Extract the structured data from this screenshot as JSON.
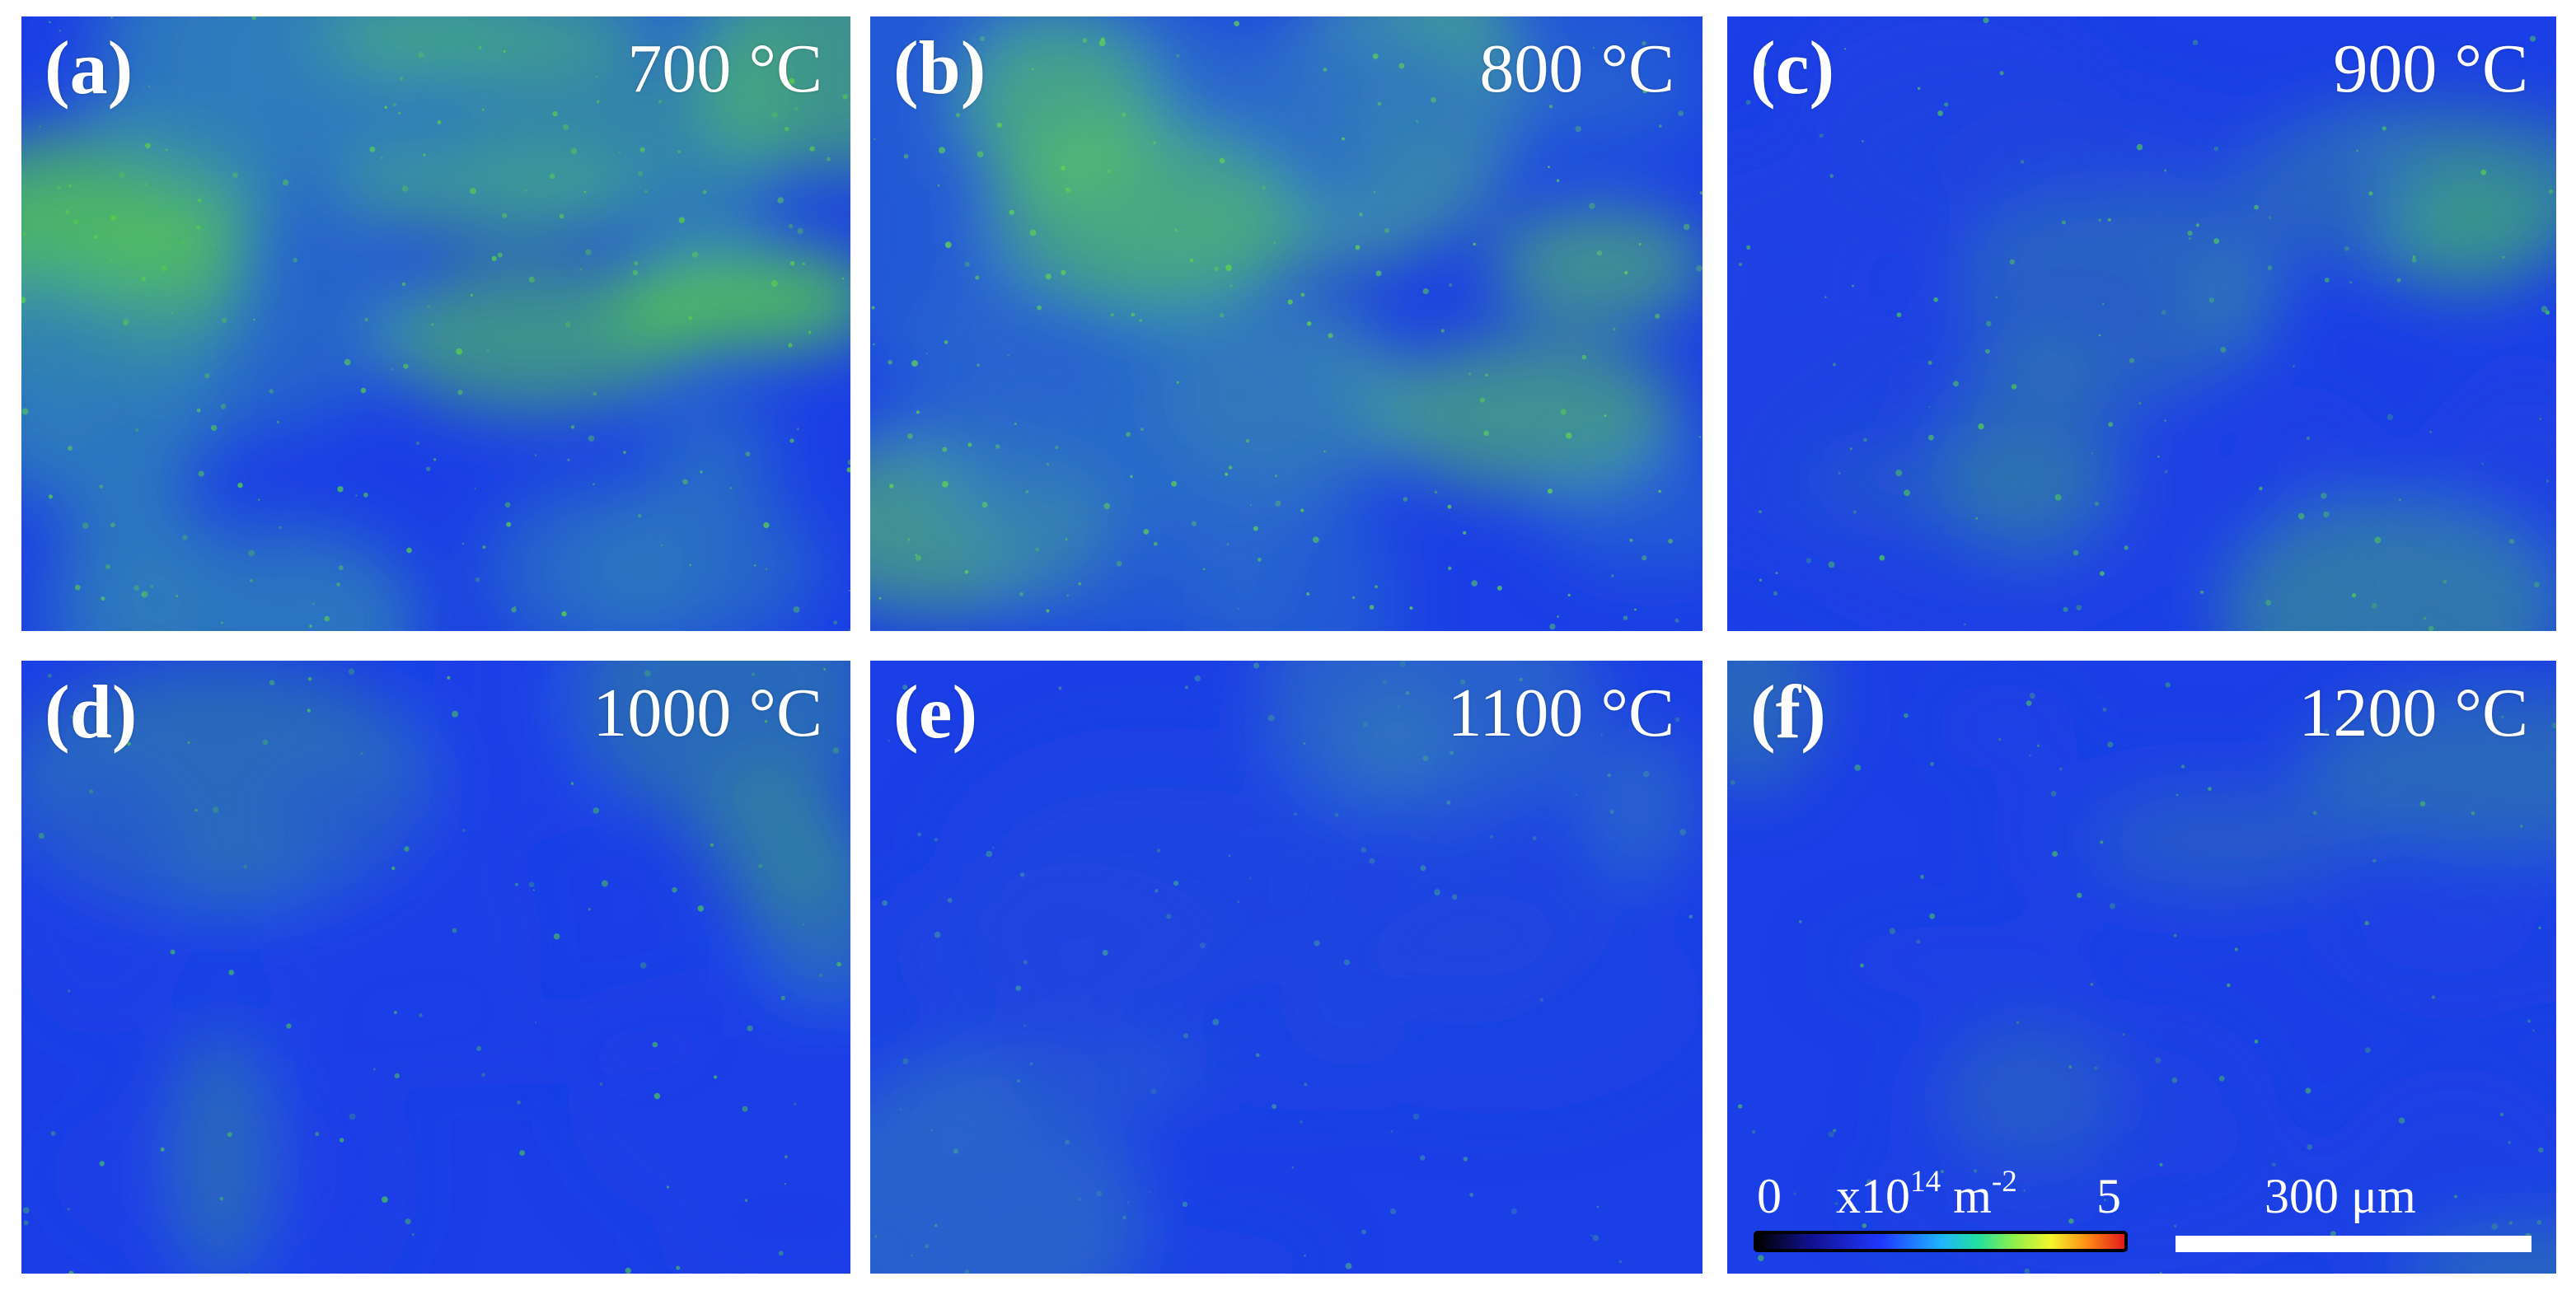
{
  "panels": [
    {
      "letter": "(a)",
      "temp": "700 °C",
      "tone": "#2f7fb8",
      "spots": "#58cf4d",
      "density": 0.55
    },
    {
      "letter": "(b)",
      "temp": "800 °C",
      "tone": "#2b6fc8",
      "spots": "#5fd650",
      "density": 0.5
    },
    {
      "letter": "(c)",
      "temp": "900 °C",
      "tone": "#2047de",
      "spots": "#4ec85a",
      "density": 0.25
    },
    {
      "letter": "(d)",
      "temp": "1000 °C",
      "tone": "#1d3fe8",
      "spots": "#48c05e",
      "density": 0.12
    },
    {
      "letter": "(e)",
      "temp": "1100 °C",
      "tone": "#2049de",
      "spots": "#3f9aa0",
      "density": 0.18
    },
    {
      "letter": "(f)",
      "temp": "1200 °C",
      "tone": "#1f44e2",
      "spots": "#44b070",
      "density": 0.15
    }
  ],
  "colorbar": {
    "min_label": "0",
    "unit_prefix": "x10",
    "exponent": "14",
    "unit_suffix": " m",
    "unit_exponent": "-2",
    "max_label": "5"
  },
  "scalebar": {
    "label": "300 μm"
  }
}
